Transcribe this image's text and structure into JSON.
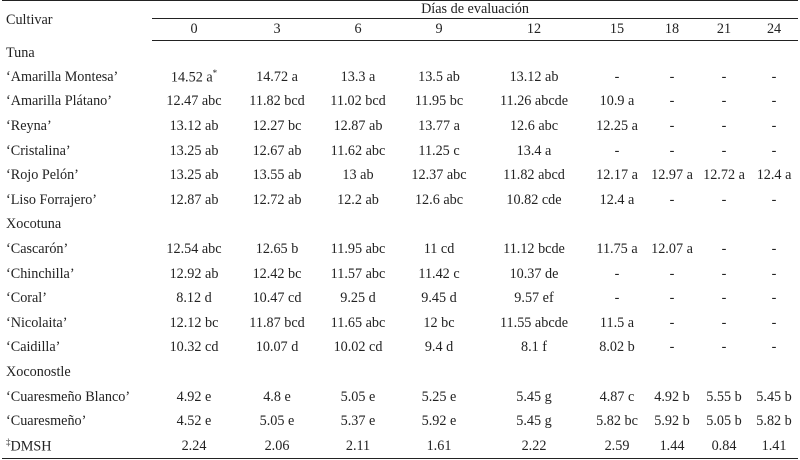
{
  "header": {
    "cultivar": "Cultivar",
    "dias": "Días de evaluación",
    "days": [
      "0",
      "3",
      "6",
      "9",
      "12",
      "15",
      "18",
      "21",
      "24"
    ]
  },
  "groups": [
    {
      "name": "Tuna",
      "rows": [
        {
          "cultivar": "‘Amarilla Montesa’",
          "values": [
            "14.52 a",
            "14.72 a",
            "13.3 a",
            "13.5 ab",
            "13.12 ab",
            "-",
            "-",
            "-",
            "-"
          ],
          "sup0": "*"
        },
        {
          "cultivar": "‘Amarilla Plátano’",
          "values": [
            "12.47 abc",
            "11.82 bcd",
            "11.02 bcd",
            "11.95 bc",
            "11.26 abcde",
            "10.9 a",
            "-",
            "-",
            "-"
          ]
        },
        {
          "cultivar": "‘Reyna’",
          "values": [
            "13.12 ab",
            "12.27 bc",
            "12.87 ab",
            "13.77 a",
            "12.6 abc",
            "12.25 a",
            "-",
            "-",
            "-"
          ]
        },
        {
          "cultivar": "‘Cristalina’",
          "values": [
            "13.25 ab",
            "12.67 ab",
            "11.62 abc",
            "11.25 c",
            "13.4 a",
            "-",
            "-",
            "-",
            "-"
          ]
        },
        {
          "cultivar": "‘Rojo Pelón’",
          "values": [
            "13.25 ab",
            "13.55 ab",
            "13 ab",
            "12.37 abc",
            "11.82 abcd",
            "12.17 a",
            "12.97 a",
            "12.72 a",
            "12.4 a"
          ]
        },
        {
          "cultivar": "‘Liso Forrajero’",
          "values": [
            "12.87 ab",
            "12.72 ab",
            "12.2 ab",
            "12.6 abc",
            "10.82 cde",
            "12.4 a",
            "-",
            "-",
            "-"
          ]
        }
      ]
    },
    {
      "name": "Xocotuna",
      "rows": [
        {
          "cultivar": "‘Cascarón’",
          "values": [
            "12.54 abc",
            "12.65 b",
            "11.95 abc",
            "11 cd",
            "11.12 bcde",
            "11.75 a",
            "12.07 a",
            "-",
            "-"
          ]
        },
        {
          "cultivar": "‘Chinchilla’",
          "values": [
            "12.92 ab",
            "12.42 bc",
            "11.57 abc",
            "11.42 c",
            "10.37 de",
            "-",
            "-",
            "-",
            "-"
          ]
        },
        {
          "cultivar": "‘Coral’",
          "values": [
            "8.12 d",
            "10.47 cd",
            "9.25 d",
            "9.45 d",
            "9.57 ef",
            "-",
            "-",
            "-",
            "-"
          ]
        },
        {
          "cultivar": "‘Nicolaita’",
          "values": [
            "12.12 bc",
            "11.87 bcd",
            "11.65 abc",
            "12 bc",
            "11.55 abcde",
            "11.5 a",
            "-",
            "-",
            "-"
          ]
        },
        {
          "cultivar": "‘Caidilla’",
          "values": [
            "10.32 cd",
            "10.07 d",
            "10.02 cd",
            "9.4 d",
            "8.1 f",
            "8.02 b",
            "-",
            "-",
            "-"
          ]
        }
      ]
    },
    {
      "name": "Xoconostle",
      "rows": [
        {
          "cultivar": "‘Cuaresmeño Blanco’",
          "values": [
            "4.92 e",
            "4.8 e",
            "5.05 e",
            "5.25 e",
            "5.45 g",
            "4.87 c",
            "4.92 b",
            "5.55 b",
            "5.45 b"
          ]
        },
        {
          "cultivar": "‘Cuaresmeño’",
          "values": [
            "4.52 e",
            "5.05 e",
            "5.37 e",
            "5.92 e",
            "5.45 g",
            "5.82 bc",
            "5.92 b",
            "5.05 b",
            "5.82 b"
          ]
        }
      ]
    }
  ],
  "dmsh": {
    "sup": "‡",
    "label": "DMSH",
    "values": [
      "2.24",
      "2.06",
      "2.11",
      "1.61",
      "2.22",
      "2.59",
      "1.44",
      "0.84",
      "1.41"
    ]
  }
}
